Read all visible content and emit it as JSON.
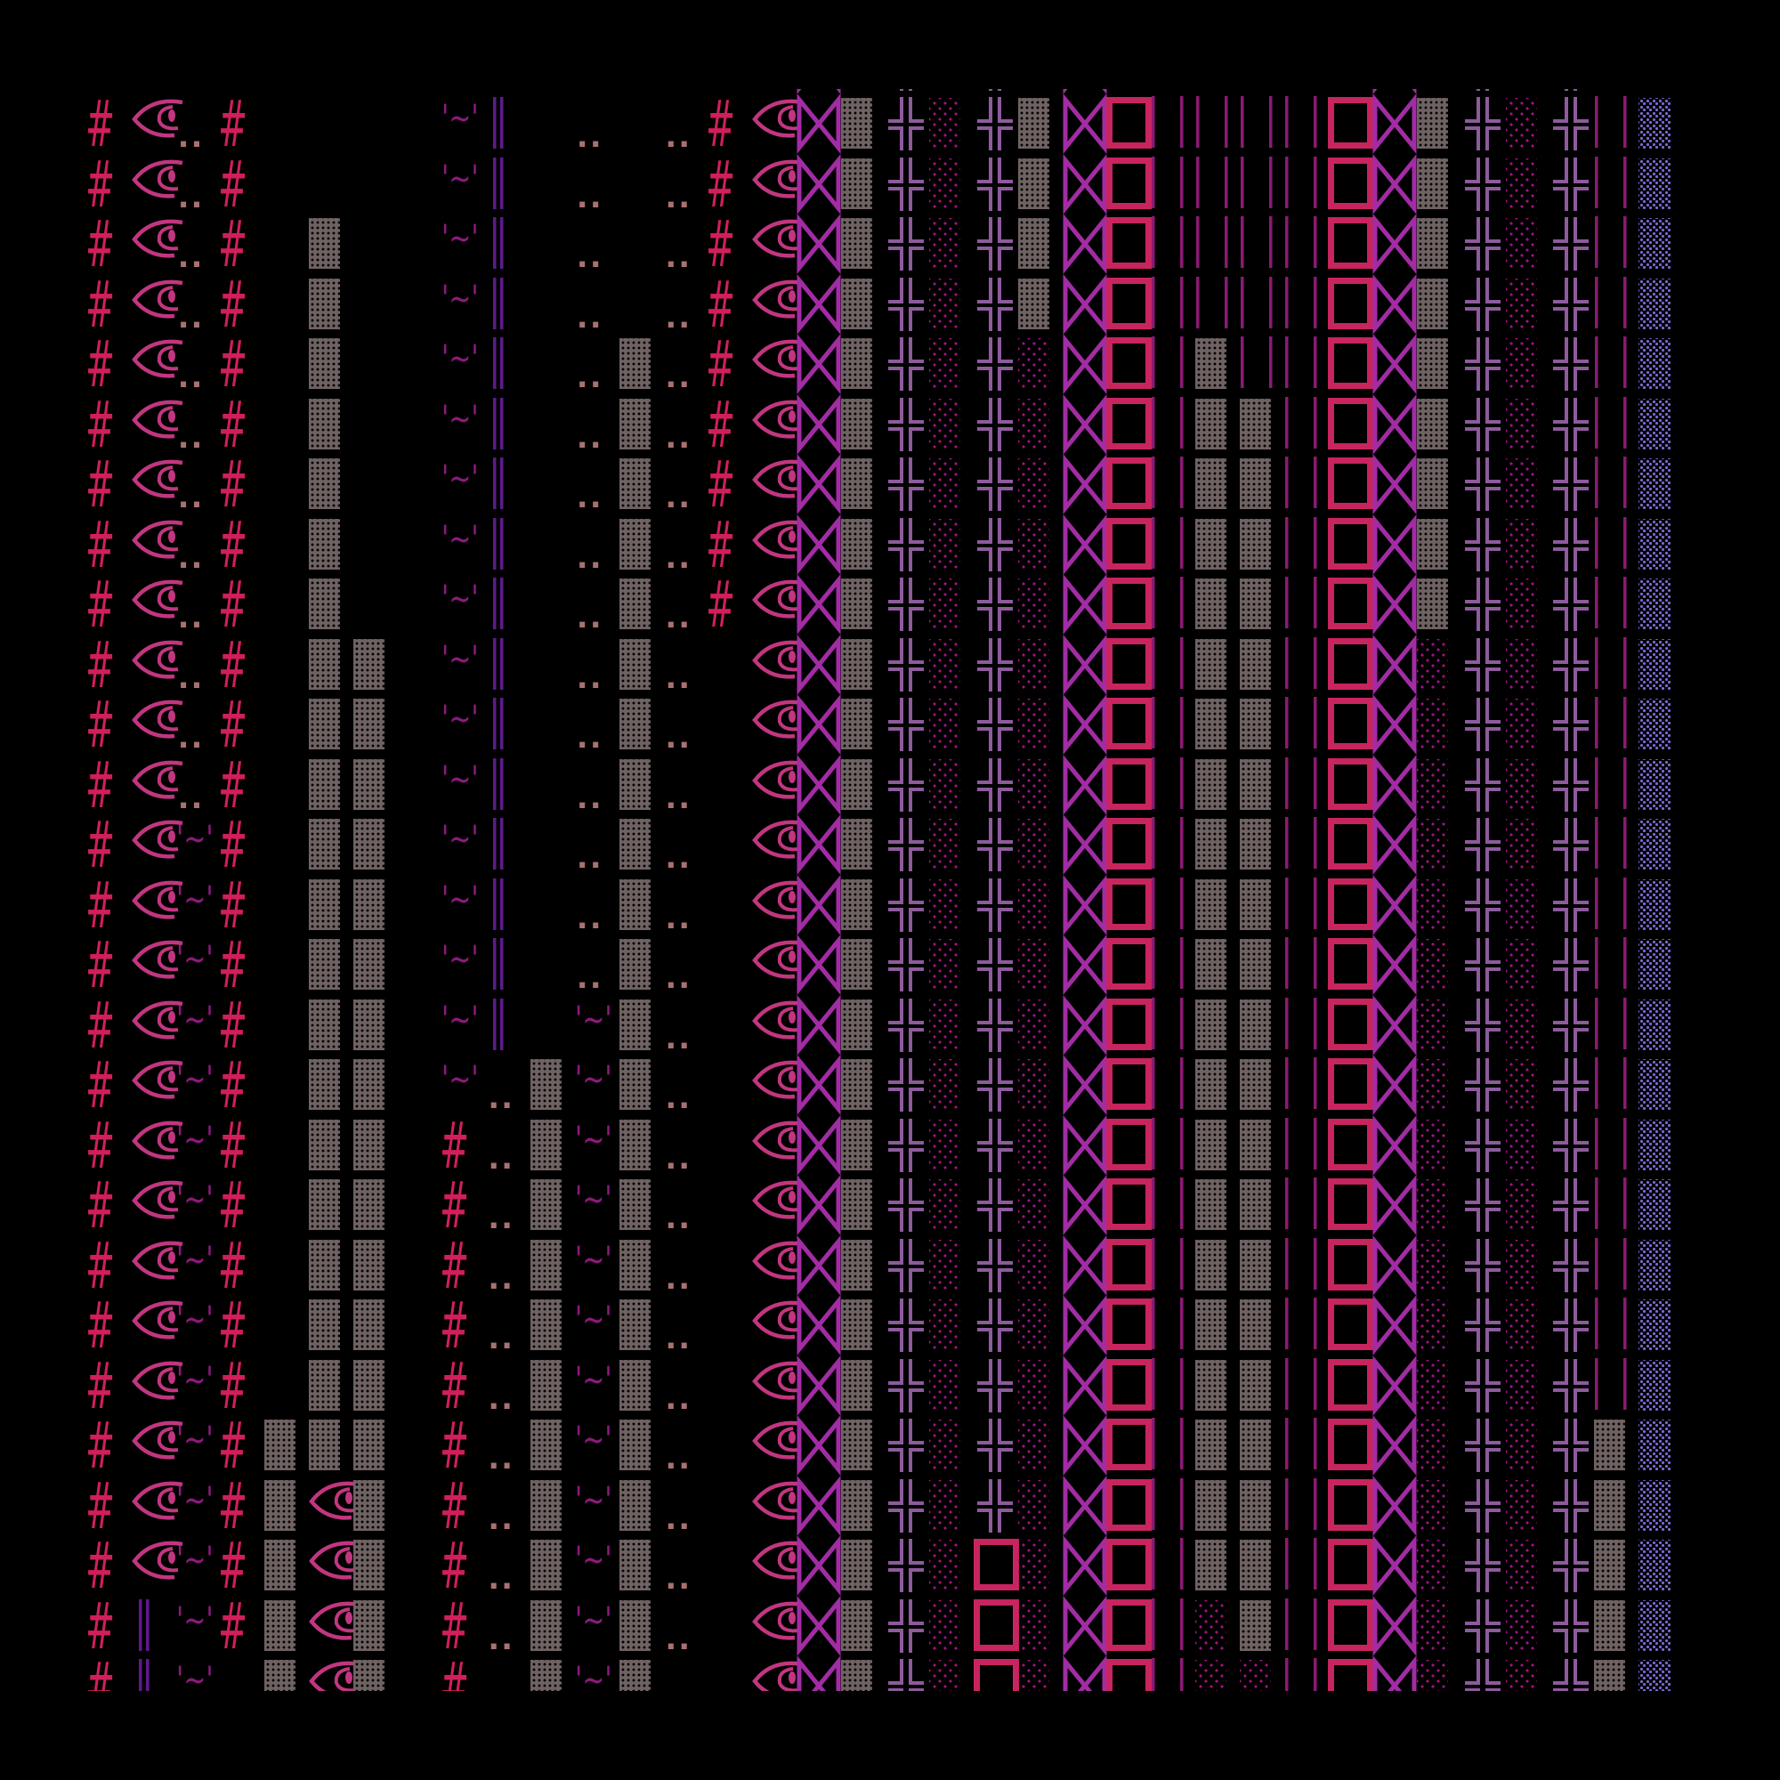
{
  "glyphs": {
    "H": {
      "name": "hash-glyph",
      "text": "#",
      "color": "#d01f5a"
    },
    "E": {
      "name": "eye-icon",
      "icon": "eye",
      "color": "#c23680"
    },
    "D": {
      "name": "double-dot-glyph",
      "text": "..",
      "color": "#a87272"
    },
    "T": {
      "name": "tilde-glyph",
      "text": "'~'",
      "color": "#8c1a7c"
    },
    "V": {
      "name": "double-bar-icon",
      "icon": "double-vertical-bar",
      "color": "#5e1a8c"
    },
    "G": {
      "name": "gray-block",
      "icon": "shaded-block",
      "color": "#6f6262"
    },
    "B": {
      "name": "bowtie-icon",
      "icon": "bowtie",
      "color": "#a22ca4"
    },
    "X": {
      "name": "double-cross-icon",
      "icon": "box-double-cross",
      "color": "#8d5b9c"
    },
    "P": {
      "name": "pink-dots-block",
      "icon": "dotted-block",
      "color": "#a3127f"
    },
    "Q": {
      "name": "box-icon",
      "icon": "square-outline",
      "color": "#c8245f"
    },
    "L": {
      "name": "bars-icon",
      "icon": "vertical-bars",
      "color": "#8b1a72"
    },
    "U": {
      "name": "blue-dots-block",
      "icon": "dotted-block",
      "color": "#7b6ad6"
    }
  },
  "rows": [
    "HEDH....TV.D.DHEBGXPXGBQLLLLQBGXPXLU",
    "HEDH....TV.D.DHEBGXPXGBQLLLLQBGXPXLU",
    "HEDH....TV.D.DHEBGXPXGBQLLLLQBGXPXLU",
    "HEDH.G..TV.D.DHEBGXPXGBQLLLLQBGXPXLU",
    "HEDH.G..TV.D.DHEBGXPXGBQLLLLQBGXPXLU",
    "HEDH.G..TV.DGDHEBGXPXPBQLGLLQBGXPXLU",
    "HEDH.G..TV.DGDHEBGXPXPBQLGGLQBGXPXLU",
    "HEDH.G..TV.DGDHEBGXPXPBQLGGLQBGXPXLU",
    "HEDH.G..TV.DGDHEBGXPXPBQLGGLQBGXPXLU",
    "HEDH.G..TV.DGDHEBGXPXPBQLGGLQBGXPXLU",
    "HEDH.GG.TV.DGD.EBGXPXPBQLGGLQBPXPXLU",
    "HEDH.GG.TV.DGD.EBGXPXPBQLGGLQBPXPXLU",
    "HEDH.GG.TV.DGD.EBGXPXPBQLGGLQBPXPXLU",
    "HETH.GG.TV.DGD.EBGXPXPBQLGGLQBPXPXLU",
    "HETH.GG.TV.DGD.EBGXPXPBQLGGLQBPXPXLU",
    "HETH.GG.TV.DGD.EBGXPXPBQLGGLQBPXPXLU",
    "HETH.GG.TV.TGD.EBGXPXPBQLGGLQBPXPXLU",
    "HETH.GG.TDGTGD.EBGXPXPBQLGGLQBPXPXLU",
    "HETH.GG.HDGTGD.EBGXPXPBQLGGLQBPXPXLU",
    "HETH.GG.HDGTGD.EBGXPXPBQLGGLQBPXPXLU",
    "HETH.GG.HDGTGD.EBGXPXPBQLGGLQBPXPXLU",
    "HETH.GG.HDGTGD.EBGXPXPBQLGGLQBPXPXLU",
    "HETH.GG.HDGTGD.EBGXPXPBQLGGLQBPXPXLU",
    "HETHGGG.HDGTGD.EBGXPXPBQLGGLQBPXPXGU",
    "HETHGEG.HDGTGD.EBGXPXPBQLGGLQBPXPXGU",
    "HETHGEG.HDGTGD.EBGXPQPBQLGGLQBPXPXGU",
    "HVTHGEG.HDGTGD.EBGXPQPBQLPGLQBPXPXGU",
    "HVT.GEG.HDGTGD.EBGXPQPBQLPPLQBPXPXGU"
  ]
}
